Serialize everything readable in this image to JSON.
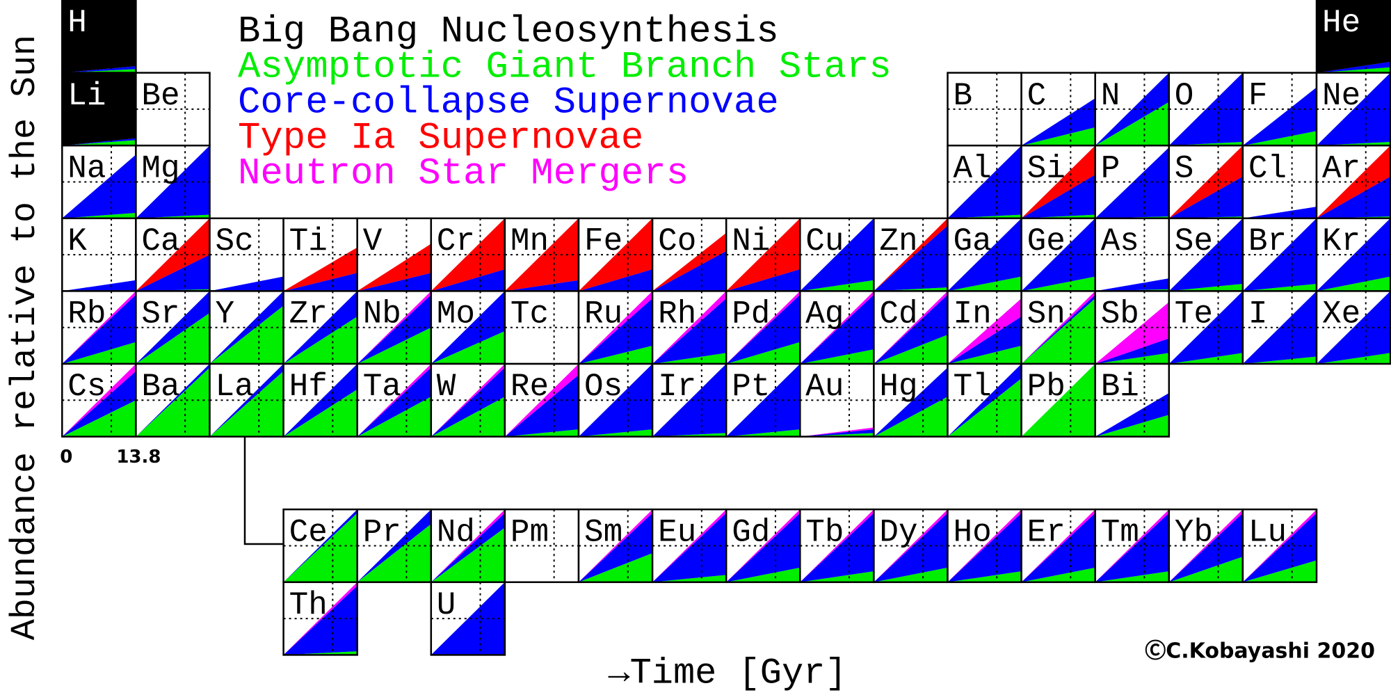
{
  "chart_data": {
    "type": "periodic-area",
    "series": [
      {
        "name": "Big Bang Nucleosynthesis",
        "color": "#000000",
        "shape": "constant"
      },
      {
        "name": "Asymptotic Giant Branch Stars",
        "color": "#00ee00",
        "shape": "growing"
      },
      {
        "name": "Core-collapse Supernovae",
        "color": "#0000ff",
        "shape": "growing"
      },
      {
        "name": "Type Ia Supernovae",
        "color": "#ff0000",
        "shape": "growing"
      },
      {
        "name": "Neutron Star Mergers",
        "color": "#ff00ff",
        "shape": "growing"
      }
    ],
    "xlim": [
      0,
      13.8
    ],
    "ylim": [
      0,
      2
    ],
    "xticks": [
      0,
      13.8
    ],
    "reflines": {
      "x": 9.2,
      "y": 1
    },
    "xlabel": "→Time [Gyr]",
    "ylabel": "Abundance relative to the Sun",
    "credit": "ⒸC.Kobayashi 2020",
    "elements": [
      {
        "symbol": "H",
        "values": [
          2,
          0.1,
          0.08,
          0,
          0
        ]
      },
      {
        "symbol": "He",
        "values": [
          2,
          0.15,
          0.15,
          0,
          0
        ]
      },
      {
        "symbol": "Li",
        "values": [
          2,
          0.15,
          0.05,
          0,
          0
        ]
      },
      {
        "symbol": "Be",
        "values": [
          0,
          0,
          0,
          0,
          0
        ]
      },
      {
        "symbol": "B",
        "values": [
          0,
          0,
          0,
          0,
          0
        ]
      },
      {
        "symbol": "C",
        "values": [
          0,
          0.5,
          0.8,
          0,
          0
        ]
      },
      {
        "symbol": "N",
        "values": [
          0,
          1.2,
          0.8,
          0,
          0
        ]
      },
      {
        "symbol": "O",
        "values": [
          0,
          0.1,
          1.9,
          0,
          0
        ]
      },
      {
        "symbol": "F",
        "values": [
          0,
          0.4,
          1.2,
          0,
          0
        ]
      },
      {
        "symbol": "Ne",
        "values": [
          0,
          0.1,
          1.9,
          0,
          0
        ]
      },
      {
        "symbol": "Na",
        "values": [
          0,
          0.15,
          1.6,
          0,
          0
        ]
      },
      {
        "symbol": "Mg",
        "values": [
          0,
          0.1,
          1.9,
          0,
          0
        ]
      },
      {
        "symbol": "Al",
        "values": [
          0,
          0.1,
          1.9,
          0,
          0
        ]
      },
      {
        "symbol": "Si",
        "values": [
          0,
          0.1,
          1.1,
          0.8,
          0
        ]
      },
      {
        "symbol": "P",
        "values": [
          0,
          0.05,
          1.9,
          0,
          0
        ]
      },
      {
        "symbol": "S",
        "values": [
          0,
          0.05,
          1.1,
          0.85,
          0
        ]
      },
      {
        "symbol": "Cl",
        "values": [
          0,
          0.02,
          0.3,
          0,
          0
        ]
      },
      {
        "symbol": "Ar",
        "values": [
          0,
          0.05,
          1.1,
          0.85,
          0
        ]
      },
      {
        "symbol": "K",
        "values": [
          0,
          0,
          0.3,
          0,
          0
        ]
      },
      {
        "symbol": "Ca",
        "values": [
          0,
          0.05,
          0.95,
          1.0,
          0
        ]
      },
      {
        "symbol": "Sc",
        "values": [
          0,
          0,
          0.4,
          0,
          0
        ]
      },
      {
        "symbol": "Ti",
        "values": [
          0,
          0,
          0.5,
          0.7,
          0
        ]
      },
      {
        "symbol": "V",
        "values": [
          0,
          0,
          0.5,
          0.8,
          0
        ]
      },
      {
        "symbol": "Cr",
        "values": [
          0,
          0,
          0.6,
          1.4,
          0
        ]
      },
      {
        "symbol": "Mn",
        "values": [
          0,
          0,
          0.3,
          1.7,
          0
        ]
      },
      {
        "symbol": "Fe",
        "values": [
          0,
          0,
          0.6,
          1.4,
          0
        ]
      },
      {
        "symbol": "Co",
        "values": [
          0,
          0,
          1.1,
          0.5,
          0
        ]
      },
      {
        "symbol": "Ni",
        "values": [
          0,
          0,
          0.6,
          1.4,
          0
        ]
      },
      {
        "symbol": "Cu",
        "values": [
          0,
          0.3,
          1.7,
          0,
          0
        ]
      },
      {
        "symbol": "Zn",
        "values": [
          0,
          0.1,
          1.7,
          0.2,
          0
        ]
      },
      {
        "symbol": "Ga",
        "values": [
          0,
          0.4,
          1.6,
          0,
          0
        ]
      },
      {
        "symbol": "Ge",
        "values": [
          0,
          0.4,
          1.6,
          0,
          0
        ]
      },
      {
        "symbol": "As",
        "values": [
          0,
          0.05,
          0.3,
          0,
          0
        ]
      },
      {
        "symbol": "Se",
        "values": [
          0,
          0.2,
          1.8,
          0,
          0
        ]
      },
      {
        "symbol": "Br",
        "values": [
          0,
          0.2,
          1.8,
          0,
          0
        ]
      },
      {
        "symbol": "Kr",
        "values": [
          0,
          0.4,
          1.6,
          0,
          0
        ]
      },
      {
        "symbol": "Rb",
        "values": [
          0,
          0.6,
          1.3,
          0,
          0.1
        ]
      },
      {
        "symbol": "Sr",
        "values": [
          0,
          1.4,
          0.6,
          0,
          0
        ]
      },
      {
        "symbol": "Y",
        "values": [
          0,
          1.6,
          0.4,
          0,
          0
        ]
      },
      {
        "symbol": "Zr",
        "values": [
          0,
          1.3,
          0.7,
          0,
          0
        ]
      },
      {
        "symbol": "Nb",
        "values": [
          0,
          1.0,
          0.9,
          0,
          0.1
        ]
      },
      {
        "symbol": "Mo",
        "values": [
          0,
          0.9,
          1.1,
          0,
          0
        ]
      },
      {
        "symbol": "Tc",
        "values": [
          0,
          0,
          0,
          0,
          0
        ]
      },
      {
        "symbol": "Ru",
        "values": [
          0,
          0.5,
          1.3,
          0,
          0.2
        ]
      },
      {
        "symbol": "Rh",
        "values": [
          0,
          0.3,
          1.5,
          0,
          0.2
        ]
      },
      {
        "symbol": "Pd",
        "values": [
          0,
          0.6,
          1.3,
          0,
          0.1
        ]
      },
      {
        "symbol": "Ag",
        "values": [
          0,
          0.4,
          1.5,
          0,
          0.1
        ]
      },
      {
        "symbol": "Cd",
        "values": [
          0,
          0.8,
          1.1,
          0,
          0.1
        ]
      },
      {
        "symbol": "In",
        "values": [
          0,
          0.5,
          0.8,
          0,
          0.5
        ]
      },
      {
        "symbol": "Sn",
        "values": [
          0,
          1.8,
          0.1,
          0,
          0.1
        ]
      },
      {
        "symbol": "Sb",
        "values": [
          0,
          0.3,
          0.4,
          0,
          1.0
        ]
      },
      {
        "symbol": "Te",
        "values": [
          0,
          0.3,
          1.7,
          0,
          0
        ]
      },
      {
        "symbol": "I",
        "values": [
          0,
          0.2,
          1.8,
          0,
          0
        ]
      },
      {
        "symbol": "Xe",
        "values": [
          0,
          0.3,
          1.7,
          0,
          0
        ]
      },
      {
        "symbol": "Cs",
        "values": [
          0,
          1.0,
          0.8,
          0,
          0.2
        ]
      },
      {
        "symbol": "Ba",
        "values": [
          0,
          1.9,
          0.1,
          0,
          0
        ]
      },
      {
        "symbol": "La",
        "values": [
          0,
          1.8,
          0.2,
          0,
          0
        ]
      },
      {
        "symbol": "Hf",
        "values": [
          0,
          1.3,
          0.7,
          0,
          0
        ]
      },
      {
        "symbol": "Ta",
        "values": [
          0,
          1.1,
          0.8,
          0,
          0.1
        ]
      },
      {
        "symbol": "W",
        "values": [
          0,
          1.1,
          0.8,
          0,
          0.1
        ]
      },
      {
        "symbol": "Re",
        "values": [
          0,
          0.2,
          1.5,
          0,
          0.3
        ]
      },
      {
        "symbol": "Os",
        "values": [
          0,
          0.2,
          1.8,
          0,
          0
        ]
      },
      {
        "symbol": "Ir",
        "values": [
          0,
          0.1,
          1.9,
          0,
          0
        ]
      },
      {
        "symbol": "Pt",
        "values": [
          0,
          0.2,
          1.8,
          0,
          0
        ]
      },
      {
        "symbol": "Au",
        "values": [
          0,
          0.1,
          0.1,
          0,
          0.05
        ]
      },
      {
        "symbol": "Hg",
        "values": [
          0,
          1.1,
          0.8,
          0,
          0
        ]
      },
      {
        "symbol": "Tl",
        "values": [
          0,
          1.6,
          0.4,
          0,
          0
        ]
      },
      {
        "symbol": "Pb",
        "values": [
          0,
          2.0,
          0,
          0,
          0
        ]
      },
      {
        "symbol": "Bi",
        "values": [
          0,
          0.6,
          0.6,
          0,
          0
        ]
      },
      {
        "symbol": "Ce",
        "values": [
          0,
          1.9,
          0.1,
          0,
          0
        ]
      },
      {
        "symbol": "Pr",
        "values": [
          0,
          1.6,
          0.4,
          0,
          0
        ]
      },
      {
        "symbol": "Nd",
        "values": [
          0,
          1.5,
          0.4,
          0,
          0.1
        ]
      },
      {
        "symbol": "Pm",
        "values": [
          0,
          0,
          0,
          0,
          0
        ]
      },
      {
        "symbol": "Sm",
        "values": [
          0,
          0.8,
          1.1,
          0,
          0.1
        ]
      },
      {
        "symbol": "Eu",
        "values": [
          0,
          0.2,
          1.7,
          0,
          0.1
        ]
      },
      {
        "symbol": "Gd",
        "values": [
          0,
          0.4,
          1.5,
          0,
          0.1
        ]
      },
      {
        "symbol": "Tb",
        "values": [
          0,
          0.3,
          1.6,
          0,
          0.1
        ]
      },
      {
        "symbol": "Dy",
        "values": [
          0,
          0.4,
          1.5,
          0,
          0.1
        ]
      },
      {
        "symbol": "Ho",
        "values": [
          0,
          0.3,
          1.6,
          0,
          0.1
        ]
      },
      {
        "symbol": "Er",
        "values": [
          0,
          0.4,
          1.5,
          0,
          0.1
        ]
      },
      {
        "symbol": "Tm",
        "values": [
          0,
          0.3,
          1.6,
          0,
          0.1
        ]
      },
      {
        "symbol": "Yb",
        "values": [
          0,
          0.7,
          1.2,
          0,
          0.1
        ]
      },
      {
        "symbol": "Lu",
        "values": [
          0,
          0.6,
          1.3,
          0,
          0.1
        ]
      },
      {
        "symbol": "Th",
        "values": [
          0,
          0.1,
          1.8,
          0,
          0.1
        ]
      },
      {
        "symbol": "U",
        "values": [
          0,
          0,
          2.0,
          0,
          0
        ]
      }
    ]
  }
}
